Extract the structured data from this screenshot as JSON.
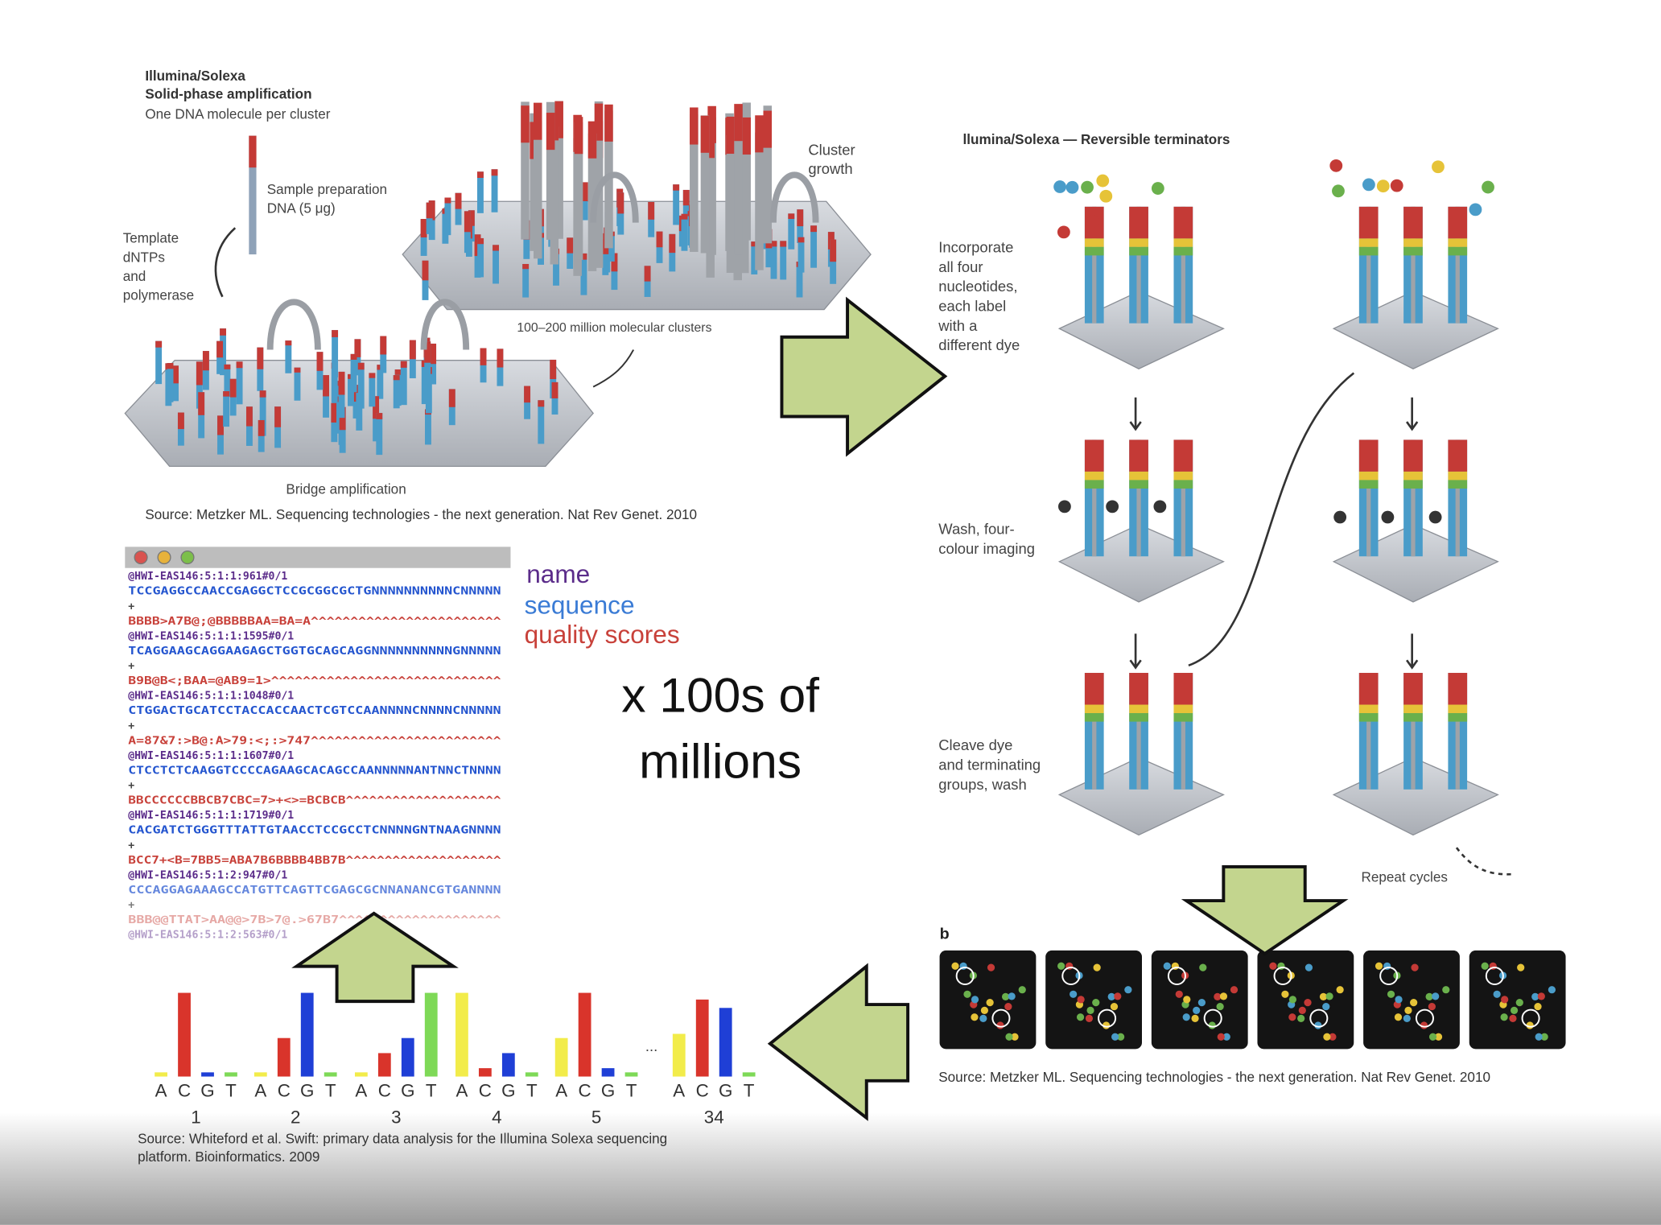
{
  "amplification": {
    "title": [
      "Illumina/Solexa",
      "Solid-phase amplification"
    ],
    "subtitle": "One DNA molecule per cluster",
    "sample_label": [
      "Sample preparation",
      "DNA (5 μg)"
    ],
    "template_label": [
      "Template",
      "dNTPs",
      "and",
      "polymerase"
    ],
    "cluster_label": [
      "Cluster",
      "growth"
    ],
    "clusters_label": "100–200 million molecular clusters",
    "bridge_label": "Bridge amplification",
    "source": "Source: Metzker ML. Sequencing technologies - the next generation. Nat Rev Genet. 2010"
  },
  "terminators": {
    "title": "llumina/Solexa — Reversible terminators",
    "steps": [
      [
        "Incorporate",
        "all four",
        "nucleotides,",
        "each label",
        "with a",
        "different dye"
      ],
      [
        "Wash, four-",
        "colour imaging"
      ],
      [
        "Cleave dye",
        "and terminating",
        "groups, wash"
      ]
    ],
    "repeat": "Repeat cycles",
    "panel_label": "b",
    "source": "Source: Metzker ML. Sequencing technologies - the next generation. Nat Rev Genet. 2010"
  },
  "fastq": {
    "lines": [
      "@HWI-EAS146:5:1:1:961#0/1",
      "TCCGAGGCCAACCGAGGCTCCGCGGCGCTGNNNNNNNNNNCNNNNN",
      "+",
      "BBBB>A7B@;@BBBBBAA=BA=A^^^^^^^^^^^^^^^^^^^^^^^^",
      "@HWI-EAS146:5:1:1:1595#0/1",
      "TCAGGAAGCAGGAAGAGCTGGTGCAGCAGGNNNNNNNNNNGNNNNN",
      "+",
      "B9B@B<;BAA=@AB9=1>^^^^^^^^^^^^^^^^^^^^^^^^^^^^^",
      "@HWI-EAS146:5:1:1:1048#0/1",
      "CTGGACTGCATCCTACCACCAACTCGTCCAANNNNCNNNNCNNNNN",
      "+",
      "A=87&7:>B@:A>79:<;:>747^^^^^^^^^^^^^^^^^^^^^^^^",
      "@HWI-EAS146:5:1:1:1607#0/1",
      "CTCCTCTCAAGGTCCCCAGAAGCACAGCCAANNNNNANTNNCTNNNN",
      "+",
      "BBCCCCCCBBCB7CBC=7>+<>=BCBCB^^^^^^^^^^^^^^^^^^^^",
      "@HWI-EAS146:5:1:1:1719#0/1",
      "CACGATCTGGGTTTATTGTAACCTCCGCCTCNNNNGNTNAAGNNNN",
      "+",
      "BCC7+<B=7BB5=ABA7B6BBBB4BB7B^^^^^^^^^^^^^^^^^^^^",
      "@HWI-EAS146:5:1:2:947#0/1",
      "CCCAGGAGAAAGCCATGTTCAGTTCGAGCGCNNANANCGTGANNNN",
      "+",
      "BBB@@TTAT>AA@@>7B>7@.>67B7^^^^^^^^^^^^^^^^^^^^",
      "@HWI-EAS146:5:1:2:563#0/1"
    ]
  },
  "legend": {
    "name": "name",
    "sequence": "sequence",
    "quality": "quality  scores"
  },
  "scale_note": [
    "x 100s of",
    "millions"
  ],
  "signal": {
    "bases": [
      "A",
      "C",
      "G",
      "T"
    ],
    "colors": [
      "#f2ec4a",
      "#d9342b",
      "#1f3fd6",
      "#7ed957"
    ],
    "cycles": [
      1,
      2,
      3,
      4,
      5,
      34
    ],
    "ellipsis": "...",
    "intensities": [
      [
        5,
        100,
        5,
        5
      ],
      [
        5,
        46,
        100,
        5
      ],
      [
        5,
        28,
        46,
        100
      ],
      [
        100,
        10,
        28,
        5
      ],
      [
        46,
        100,
        10,
        5
      ],
      [
        51,
        92,
        82,
        5
      ]
    ],
    "source": [
      "Source: Whiteford et al. Swift: primary data analysis for the Illumina Solexa sequencing",
      "platform. Bioinformatics. 2009"
    ]
  }
}
